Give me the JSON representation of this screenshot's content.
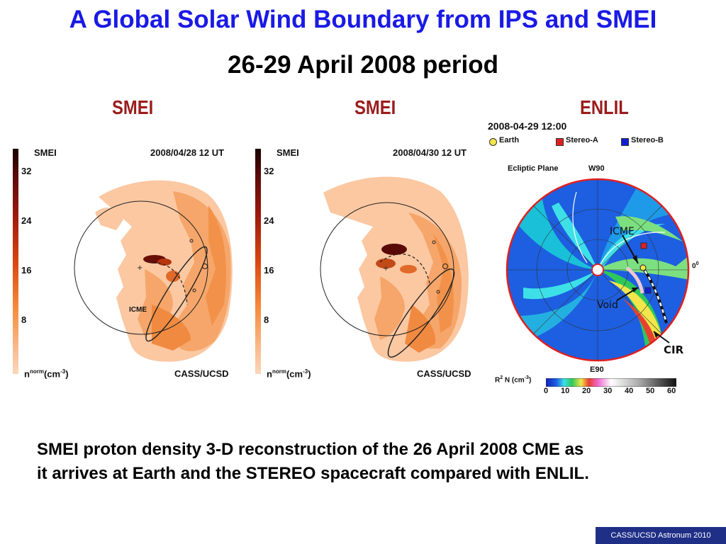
{
  "slide": {
    "title": "A Global Solar Wind Boundary from IPS and SMEI",
    "subtitle": "26-29 April 2008 period",
    "caption_line1": "SMEI proton density 3-D reconstruction of the 26 April 2008 CME as",
    "caption_line2": "it arrives at Earth and the STEREO spacecraft compared with ENLIL.",
    "footer": "CASS/UCSD Astronum 2010"
  },
  "headers": {
    "left": "SMEI",
    "middle": "SMEI",
    "right": "ENLIL"
  },
  "panel1": {
    "label": "SMEI",
    "date": "2008/04/28 12 UT",
    "credit": "CASS/UCSD",
    "unit_base": "n",
    "unit_sup": "norm",
    "unit_rest": "(cm",
    "unit_exp": "-3",
    "unit_close": ")",
    "icme_label": "ICME",
    "ticks": [
      "32",
      "24",
      "16",
      "8"
    ]
  },
  "panel2": {
    "label": "SMEI",
    "date": "2008/04/30 12 UT",
    "credit": "CASS/UCSD",
    "unit_base": "n",
    "unit_sup": "norm",
    "unit_rest": "(cm",
    "unit_exp": "-3",
    "unit_close": ")",
    "ticks": [
      "32",
      "24",
      "16",
      "8"
    ]
  },
  "enlil": {
    "datetime": "2008-04-29 12:00",
    "legend": [
      {
        "label": "Earth",
        "color": "#f2e64a"
      },
      {
        "label": "Stereo-A",
        "color": "#e02020"
      },
      {
        "label": "Stereo-B",
        "color": "#1020d0"
      }
    ],
    "plane": "Ecliptic Plane",
    "w90": "W90",
    "e90": "E90",
    "zero": "0",
    "zero_sup": "0",
    "icme": "ICME",
    "void": "Void",
    "cir": "CIR",
    "cb_label_r": "R",
    "cb_label_sup": "2",
    "cb_label_rest": " N (cm",
    "cb_label_exp": "-3",
    "cb_label_close": ")",
    "cb_ticks": [
      "0",
      "10",
      "20",
      "30",
      "40",
      "50",
      "60"
    ]
  }
}
